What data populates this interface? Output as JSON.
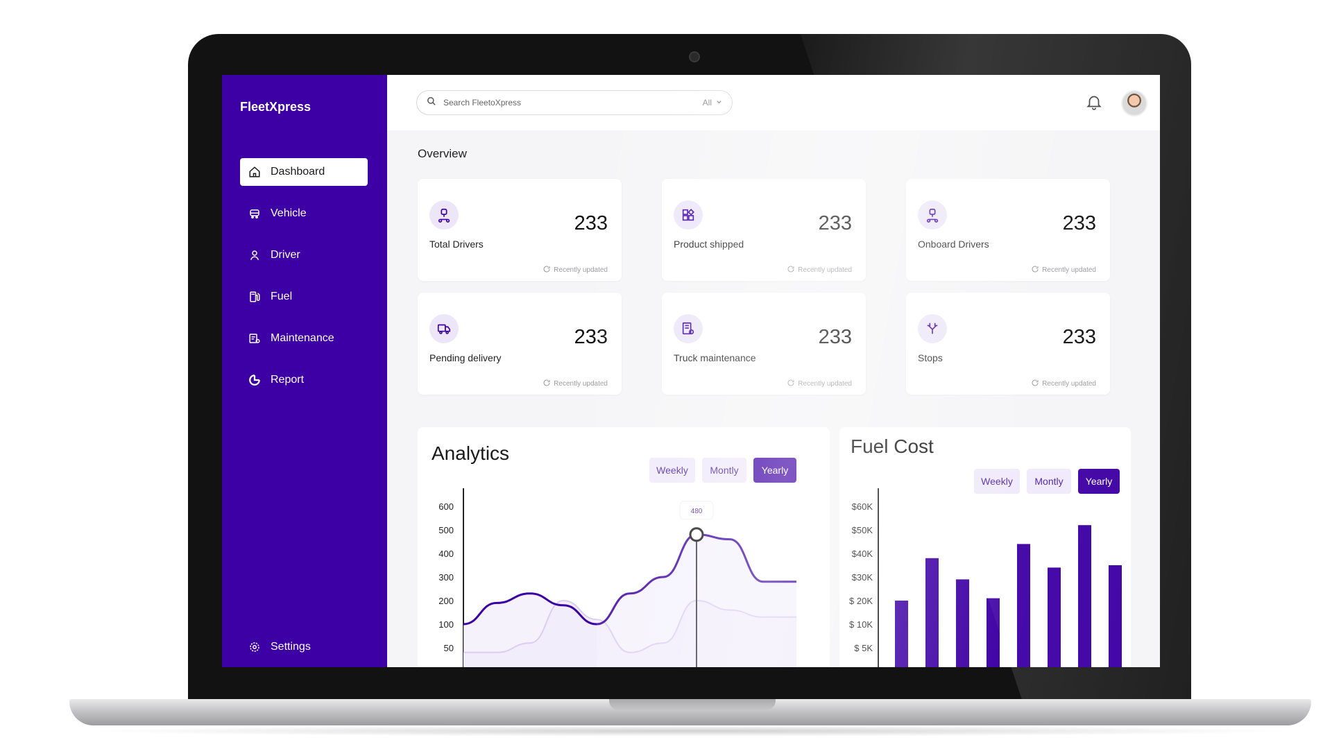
{
  "app": {
    "brand": "FleetXpress",
    "search": {
      "placeholder": "Search FleetoXpress",
      "filter": "All"
    }
  },
  "sidebar": {
    "items": [
      {
        "label": "Dashboard",
        "icon": "home-icon",
        "active": true
      },
      {
        "label": "Vehicle",
        "icon": "car-icon"
      },
      {
        "label": "Driver",
        "icon": "user-icon"
      },
      {
        "label": "Fuel",
        "icon": "fuel-icon"
      },
      {
        "label": "Maintenance",
        "icon": "maintenance-icon"
      },
      {
        "label": "Report",
        "icon": "report-icon"
      }
    ],
    "settings_label": "Settings"
  },
  "overview": {
    "title": "Overview",
    "cards": [
      {
        "label": "Total Drivers",
        "value": "233",
        "updated": "Recently updated",
        "icon": "driver-icon"
      },
      {
        "label": "Product shipped",
        "value": "233",
        "updated": "Recently updated",
        "icon": "product-icon"
      },
      {
        "label": "Onboard Drivers",
        "value": "233",
        "updated": "Recently updated",
        "icon": "driver-icon"
      },
      {
        "label": "Pending delivery",
        "value": "233",
        "updated": "Recently updated",
        "icon": "truck-icon"
      },
      {
        "label": "Truck maintenance",
        "value": "233",
        "updated": "Recently updated",
        "icon": "maintenance-doc-icon"
      },
      {
        "label": "Stops",
        "value": "233",
        "updated": "Recently updated",
        "icon": "route-split-icon"
      }
    ]
  },
  "analytics": {
    "title": "Analytics",
    "ranges": [
      "Weekly",
      "Montly",
      "Yearly"
    ],
    "active_range": "Yearly",
    "tooltip": "480"
  },
  "fuel": {
    "title": "Fuel Cost",
    "ranges": [
      "Weekly",
      "Montly",
      "Yearly"
    ],
    "active_range": "Yearly"
  },
  "colors": {
    "accent": "#3d00a4",
    "accent_light": "#efe9fa",
    "series_secondary": "#d9cdf2"
  },
  "chart_data": [
    {
      "type": "area",
      "title": "Analytics",
      "yticks": [
        "600",
        "500",
        "400",
        "300",
        "200",
        "100",
        "50"
      ],
      "tick_values": [
        600,
        500,
        400,
        300,
        200,
        100,
        50
      ],
      "ylim": [
        0,
        650
      ],
      "x": [
        0,
        1,
        2,
        3,
        4,
        5,
        6,
        7,
        8,
        9,
        10
      ],
      "series": [
        {
          "values": [
            100,
            190,
            230,
            180,
            100,
            230,
            300,
            480,
            460,
            280,
            280
          ]
        },
        {
          "values": [
            40,
            40,
            60,
            200,
            120,
            40,
            60,
            200,
            160,
            130,
            130
          ]
        }
      ],
      "highlight": {
        "index": 7,
        "value": 480,
        "label": "480"
      }
    },
    {
      "type": "bar",
      "title": "Fuel Cost",
      "yticks": [
        "$60K",
        "$50K",
        "$40K",
        "$30K",
        "$ 20K",
        "$ 10K",
        "$ 5K"
      ],
      "tick_values": [
        60,
        50,
        40,
        30,
        20,
        10,
        5
      ],
      "values": [
        20,
        38,
        29,
        21,
        44,
        34,
        52,
        35
      ]
    }
  ]
}
